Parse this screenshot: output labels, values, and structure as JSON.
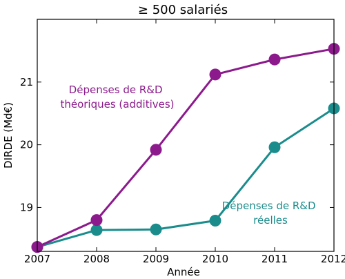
{
  "chart_data": {
    "type": "line",
    "title": "≥ 500 salariés",
    "xlabel": "Année",
    "ylabel": "DIRDE (Md€)",
    "x": [
      2007,
      2008,
      2009,
      2010,
      2011,
      2012
    ],
    "xlim": [
      2007,
      2012
    ],
    "ylim": [
      18.3,
      22.0
    ],
    "x_ticks": [
      "2007",
      "2008",
      "2009",
      "2010",
      "2011",
      "2012"
    ],
    "y_ticks": [
      19,
      20,
      21
    ],
    "y_tick_labels": [
      "19",
      "20",
      "21"
    ],
    "grid": false,
    "series": [
      {
        "name": "Dépenses de R&D théoriques (additives)",
        "label_lines": [
          "Dépenses de R&D",
          "théoriques (additives)"
        ],
        "color": "#8c1a8c",
        "values": [
          18.37,
          18.8,
          19.92,
          21.12,
          21.36,
          21.53
        ]
      },
      {
        "name": "Dépenses de R&D réelles",
        "label_lines": [
          "Dépenses de R&D",
          "réelles"
        ],
        "color": "#1a8c8c",
        "values": [
          18.37,
          18.64,
          18.65,
          18.79,
          19.96,
          20.58
        ]
      }
    ]
  }
}
